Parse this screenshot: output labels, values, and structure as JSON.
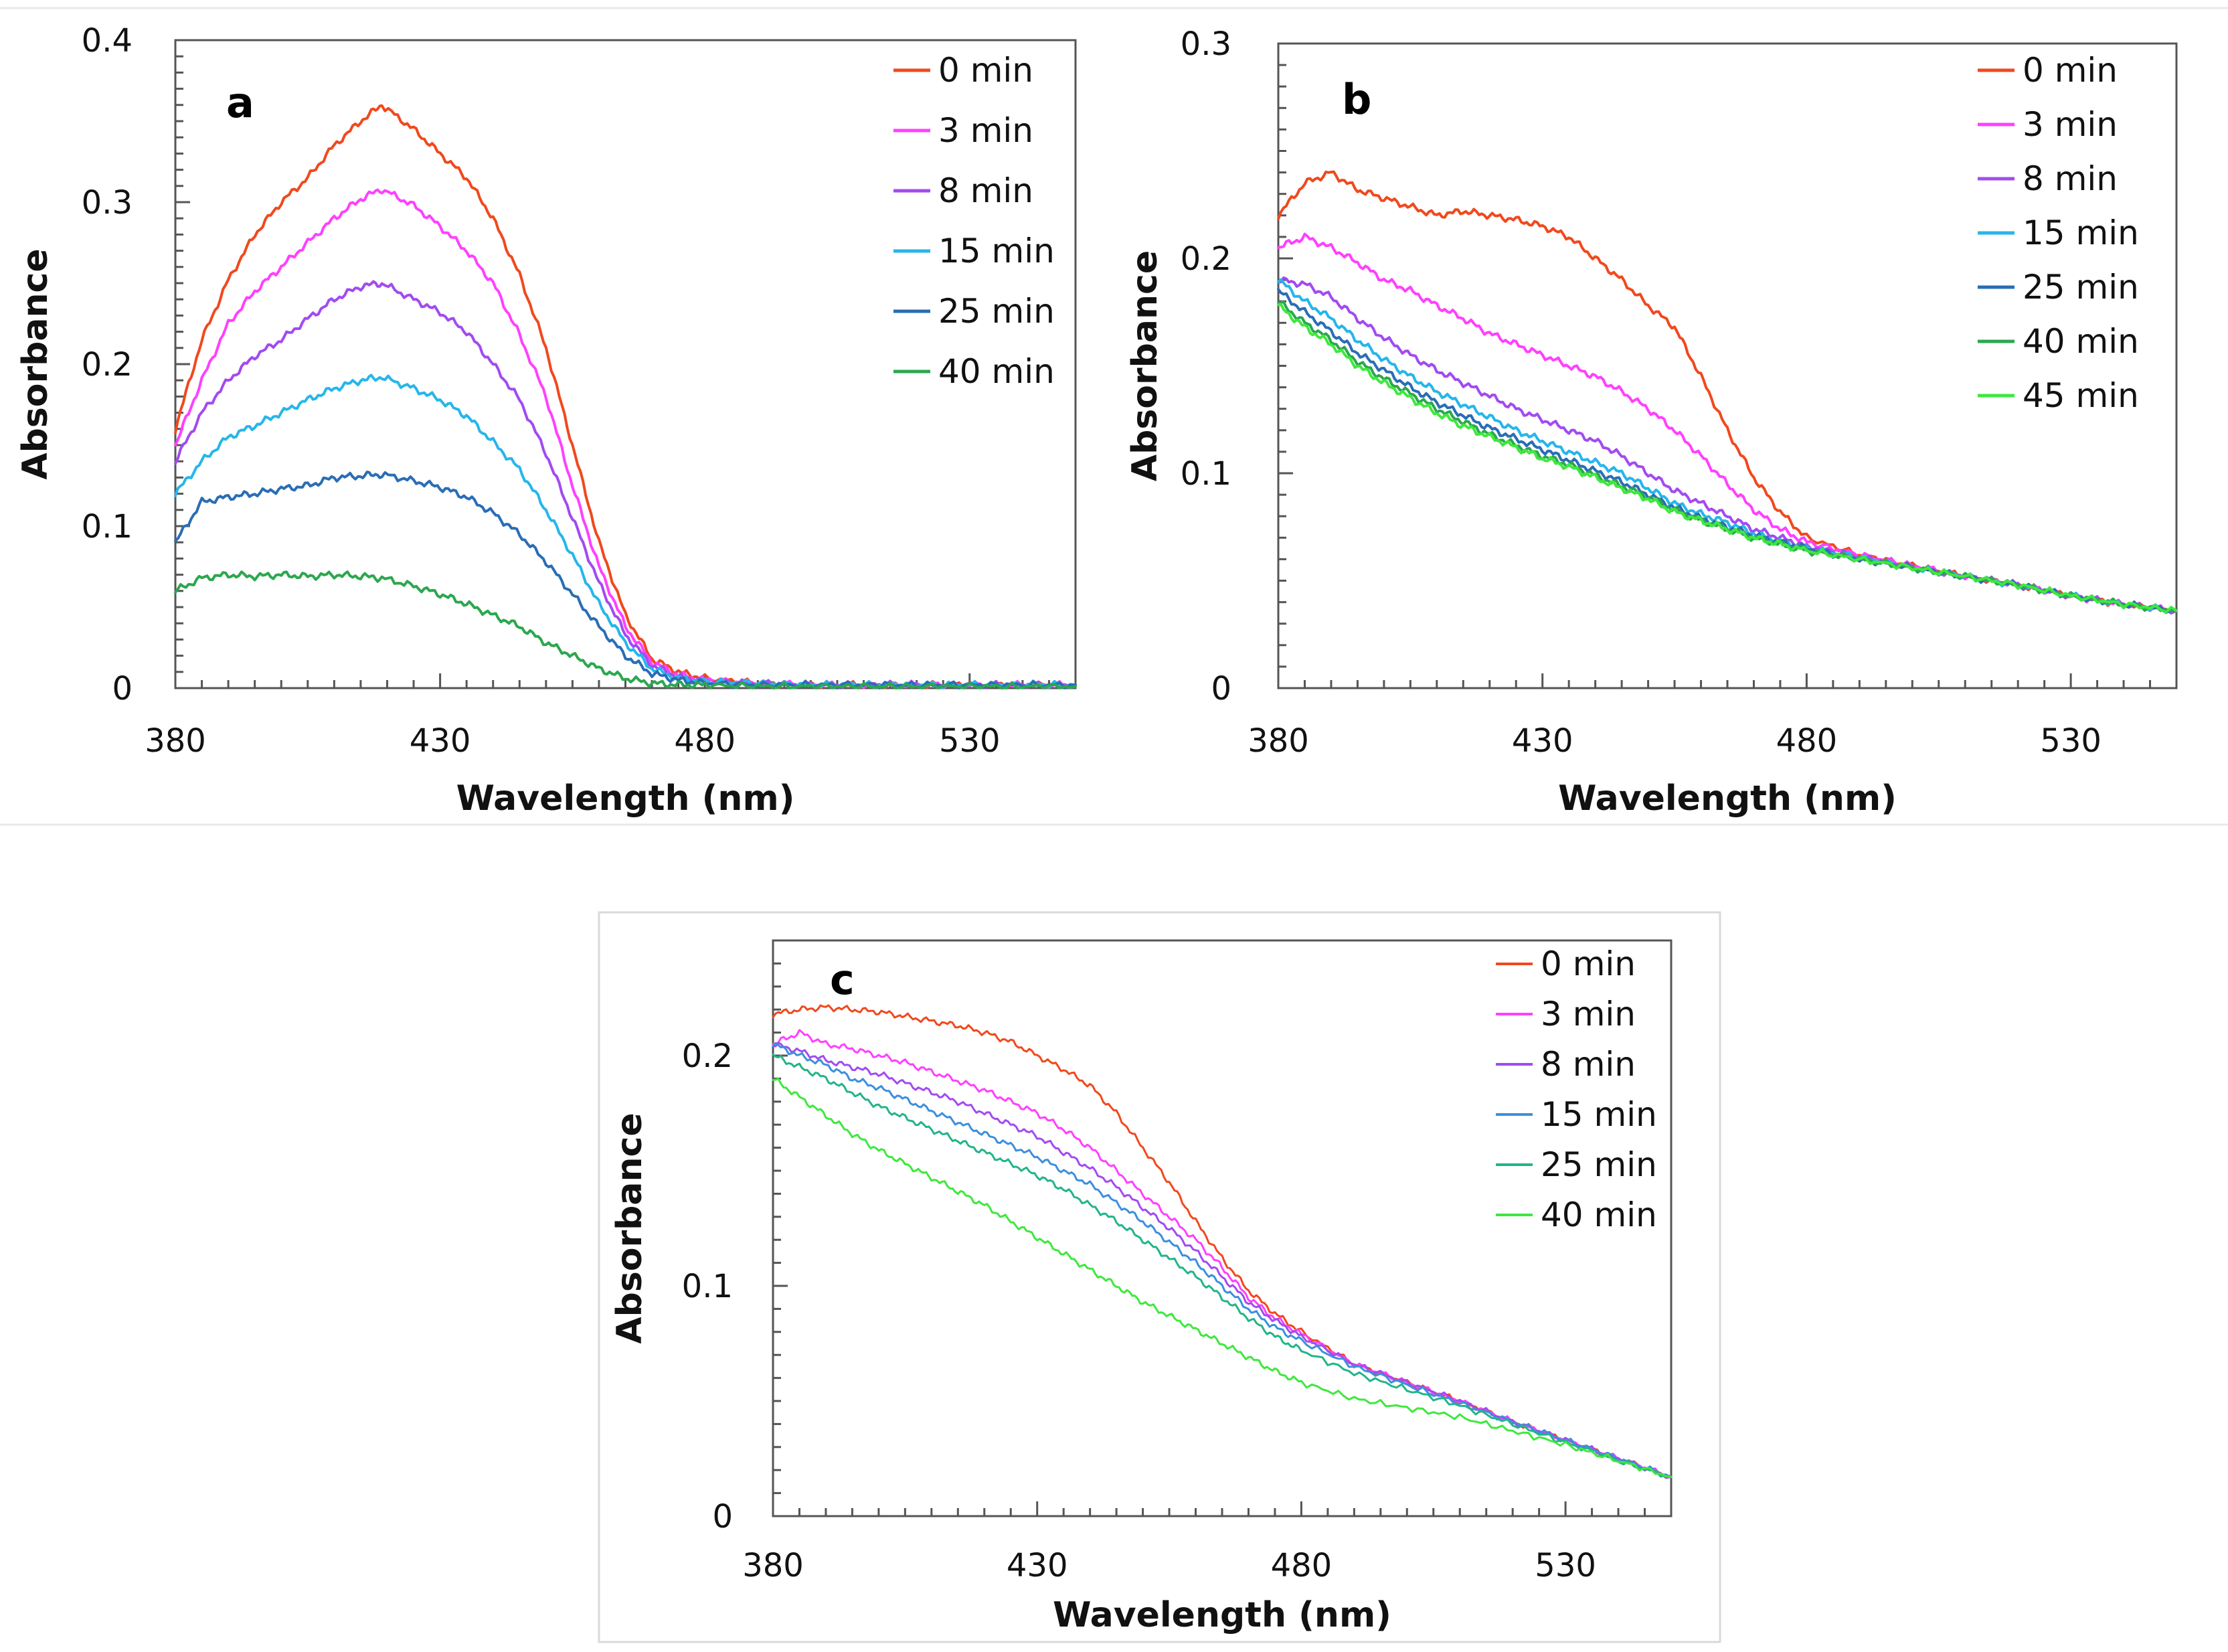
{
  "chart_data": [
    {
      "type": "line",
      "panel_label": "a",
      "xlabel": "Wavelength (nm)",
      "ylabel": "Absorbance",
      "xlim": [
        380,
        550
      ],
      "ylim": [
        0,
        0.4
      ],
      "xticks": [
        380,
        430,
        480,
        530
      ],
      "xtick_labels": [
        "380",
        "430",
        "480",
        "530"
      ],
      "yticks": [
        0,
        0.1,
        0.2,
        0.3,
        0.4
      ],
      "ytick_labels": [
        "0",
        "0.1",
        "0.2",
        "0.3",
        "0.4"
      ],
      "legend_position": "top-right",
      "x": [
        380,
        385,
        390,
        395,
        400,
        405,
        410,
        415,
        419,
        425,
        430,
        435,
        440,
        445,
        450,
        455,
        460,
        465,
        470,
        475,
        480,
        490,
        500,
        510,
        520,
        530,
        540,
        550
      ],
      "series": [
        {
          "name": "0 min",
          "color": "#f0491e",
          "values": [
            0.16,
            0.215,
            0.252,
            0.28,
            0.3,
            0.315,
            0.335,
            0.35,
            0.36,
            0.345,
            0.33,
            0.315,
            0.29,
            0.255,
            0.21,
            0.15,
            0.09,
            0.045,
            0.018,
            0.01,
            0.006,
            0.003,
            0.002,
            0.002,
            0.002,
            0.002,
            0.002,
            0.002
          ]
        },
        {
          "name": "3 min",
          "color": "#ff40ff",
          "values": [
            0.15,
            0.19,
            0.225,
            0.245,
            0.26,
            0.275,
            0.29,
            0.302,
            0.308,
            0.298,
            0.285,
            0.27,
            0.25,
            0.218,
            0.18,
            0.125,
            0.075,
            0.038,
            0.016,
            0.008,
            0.005,
            0.003,
            0.002,
            0.002,
            0.002,
            0.002,
            0.002,
            0.002
          ]
        },
        {
          "name": "8 min",
          "color": "#a24bf0",
          "values": [
            0.14,
            0.17,
            0.19,
            0.205,
            0.215,
            0.228,
            0.24,
            0.248,
            0.25,
            0.24,
            0.232,
            0.22,
            0.2,
            0.178,
            0.145,
            0.105,
            0.065,
            0.033,
            0.014,
            0.007,
            0.004,
            0.003,
            0.002,
            0.002,
            0.002,
            0.002,
            0.002,
            0.002
          ]
        },
        {
          "name": "15 min",
          "color": "#26b6ea",
          "values": [
            0.12,
            0.14,
            0.155,
            0.162,
            0.17,
            0.178,
            0.185,
            0.19,
            0.192,
            0.185,
            0.178,
            0.168,
            0.152,
            0.135,
            0.11,
            0.082,
            0.052,
            0.028,
            0.012,
            0.006,
            0.004,
            0.003,
            0.002,
            0.002,
            0.002,
            0.002,
            0.002,
            0.002
          ]
        },
        {
          "name": "25 min",
          "color": "#2a6db5",
          "values": [
            0.09,
            0.115,
            0.118,
            0.12,
            0.123,
            0.125,
            0.13,
            0.131,
            0.132,
            0.128,
            0.124,
            0.118,
            0.108,
            0.095,
            0.078,
            0.058,
            0.038,
            0.02,
            0.009,
            0.005,
            0.003,
            0.002,
            0.002,
            0.002,
            0.002,
            0.002,
            0.002,
            0.002
          ]
        },
        {
          "name": "40 min",
          "color": "#2ca74f",
          "values": [
            0.06,
            0.068,
            0.07,
            0.069,
            0.07,
            0.069,
            0.07,
            0.069,
            0.068,
            0.063,
            0.058,
            0.052,
            0.045,
            0.038,
            0.028,
            0.02,
            0.012,
            0.006,
            0.003,
            0.002,
            0.002,
            0.001,
            0.001,
            0.001,
            0.001,
            0.001,
            0.001,
            0.001
          ]
        }
      ]
    },
    {
      "type": "line",
      "panel_label": "b",
      "xlabel": "Wavelength (nm)",
      "ylabel": "Absorbance",
      "xlim": [
        380,
        550
      ],
      "ylim": [
        0,
        0.3
      ],
      "xticks": [
        380,
        430,
        480,
        530
      ],
      "xtick_labels": [
        "380",
        "430",
        "480",
        "530"
      ],
      "yticks": [
        0,
        0.1,
        0.2,
        0.3
      ],
      "ytick_labels": [
        "0",
        "0.1",
        "0.2",
        "0.3"
      ],
      "legend_position": "top-right",
      "x": [
        380,
        385,
        390,
        395,
        400,
        405,
        410,
        415,
        420,
        425,
        430,
        435,
        440,
        445,
        450,
        455,
        460,
        465,
        470,
        475,
        480,
        490,
        500,
        510,
        520,
        530,
        540,
        550
      ],
      "series": [
        {
          "name": "0 min",
          "color": "#f0491e",
          "values": [
            0.22,
            0.235,
            0.24,
            0.232,
            0.228,
            0.224,
            0.22,
            0.222,
            0.22,
            0.218,
            0.215,
            0.21,
            0.2,
            0.19,
            0.178,
            0.168,
            0.145,
            0.12,
            0.098,
            0.082,
            0.07,
            0.062,
            0.057,
            0.052,
            0.048,
            0.043,
            0.039,
            0.036
          ]
        },
        {
          "name": "3 min",
          "color": "#ff40ff",
          "values": [
            0.205,
            0.21,
            0.205,
            0.198,
            0.19,
            0.185,
            0.178,
            0.172,
            0.165,
            0.16,
            0.155,
            0.15,
            0.145,
            0.138,
            0.13,
            0.12,
            0.108,
            0.095,
            0.083,
            0.074,
            0.068,
            0.062,
            0.057,
            0.052,
            0.048,
            0.043,
            0.039,
            0.036
          ]
        },
        {
          "name": "8 min",
          "color": "#a24bf0",
          "values": [
            0.19,
            0.188,
            0.182,
            0.172,
            0.163,
            0.155,
            0.148,
            0.142,
            0.136,
            0.13,
            0.125,
            0.12,
            0.115,
            0.108,
            0.1,
            0.092,
            0.086,
            0.08,
            0.074,
            0.07,
            0.066,
            0.061,
            0.056,
            0.052,
            0.048,
            0.043,
            0.039,
            0.036
          ]
        },
        {
          "name": "15 min",
          "color": "#26b6ea",
          "values": [
            0.19,
            0.18,
            0.172,
            0.162,
            0.153,
            0.145,
            0.138,
            0.132,
            0.126,
            0.12,
            0.115,
            0.11,
            0.105,
            0.1,
            0.093,
            0.086,
            0.081,
            0.077,
            0.072,
            0.068,
            0.065,
            0.061,
            0.056,
            0.052,
            0.048,
            0.043,
            0.039,
            0.036
          ]
        },
        {
          "name": "25 min",
          "color": "#2a6db5",
          "values": [
            0.185,
            0.175,
            0.166,
            0.156,
            0.148,
            0.14,
            0.133,
            0.127,
            0.121,
            0.116,
            0.111,
            0.106,
            0.101,
            0.096,
            0.09,
            0.084,
            0.079,
            0.075,
            0.071,
            0.068,
            0.065,
            0.06,
            0.056,
            0.052,
            0.048,
            0.043,
            0.039,
            0.036
          ]
        },
        {
          "name": "40 min",
          "color": "#2ca74f",
          "values": [
            0.18,
            0.17,
            0.162,
            0.152,
            0.144,
            0.137,
            0.13,
            0.124,
            0.118,
            0.113,
            0.108,
            0.104,
            0.099,
            0.094,
            0.089,
            0.083,
            0.078,
            0.074,
            0.07,
            0.067,
            0.064,
            0.06,
            0.056,
            0.052,
            0.048,
            0.043,
            0.039,
            0.036
          ]
        },
        {
          "name": "45 min",
          "color": "#3ee83e",
          "values": [
            0.178,
            0.168,
            0.16,
            0.15,
            0.142,
            0.135,
            0.128,
            0.122,
            0.117,
            0.112,
            0.107,
            0.103,
            0.098,
            0.093,
            0.088,
            0.082,
            0.078,
            0.074,
            0.07,
            0.067,
            0.064,
            0.06,
            0.056,
            0.052,
            0.048,
            0.043,
            0.039,
            0.036
          ]
        }
      ]
    },
    {
      "type": "line",
      "panel_label": "c",
      "xlabel": "Wavelength (nm)",
      "ylabel": "Absorbance",
      "xlim": [
        380,
        550
      ],
      "ylim": [
        0,
        0.25
      ],
      "xticks": [
        380,
        430,
        480,
        530
      ],
      "xtick_labels": [
        "380",
        "430",
        "480",
        "530"
      ],
      "yticks": [
        0,
        0.1,
        0.2
      ],
      "ytick_labels": [
        "0",
        "0.1",
        "0.2"
      ],
      "legend_position": "top-right",
      "x": [
        380,
        385,
        390,
        395,
        400,
        405,
        410,
        415,
        420,
        425,
        430,
        435,
        440,
        445,
        450,
        455,
        460,
        465,
        470,
        475,
        480,
        490,
        500,
        510,
        520,
        530,
        540,
        550
      ],
      "series": [
        {
          "name": "0 min",
          "color": "#f0491e",
          "values": [
            0.218,
            0.22,
            0.221,
            0.22,
            0.219,
            0.217,
            0.215,
            0.213,
            0.21,
            0.206,
            0.2,
            0.194,
            0.187,
            0.175,
            0.16,
            0.145,
            0.128,
            0.112,
            0.098,
            0.088,
            0.08,
            0.066,
            0.058,
            0.05,
            0.041,
            0.033,
            0.025,
            0.017
          ]
        },
        {
          "name": "3 min",
          "color": "#ff40ff",
          "values": [
            0.205,
            0.21,
            0.205,
            0.203,
            0.2,
            0.197,
            0.193,
            0.189,
            0.185,
            0.18,
            0.175,
            0.168,
            0.16,
            0.15,
            0.14,
            0.13,
            0.12,
            0.108,
            0.095,
            0.086,
            0.079,
            0.066,
            0.058,
            0.05,
            0.041,
            0.033,
            0.025,
            0.017
          ]
        },
        {
          "name": "8 min",
          "color": "#a24bf0",
          "values": [
            0.205,
            0.202,
            0.198,
            0.195,
            0.192,
            0.188,
            0.184,
            0.18,
            0.175,
            0.17,
            0.165,
            0.158,
            0.151,
            0.143,
            0.134,
            0.125,
            0.115,
            0.104,
            0.093,
            0.085,
            0.078,
            0.066,
            0.058,
            0.05,
            0.041,
            0.033,
            0.025,
            0.017
          ]
        },
        {
          "name": "15 min",
          "color": "#3d8fdc",
          "values": [
            0.205,
            0.2,
            0.196,
            0.19,
            0.186,
            0.181,
            0.176,
            0.171,
            0.166,
            0.161,
            0.156,
            0.15,
            0.144,
            0.136,
            0.128,
            0.119,
            0.11,
            0.1,
            0.09,
            0.082,
            0.076,
            0.065,
            0.057,
            0.049,
            0.041,
            0.033,
            0.025,
            0.017
          ]
        },
        {
          "name": "25 min",
          "color": "#22b48a",
          "values": [
            0.2,
            0.195,
            0.19,
            0.184,
            0.178,
            0.173,
            0.168,
            0.163,
            0.158,
            0.153,
            0.148,
            0.142,
            0.135,
            0.128,
            0.12,
            0.112,
            0.104,
            0.095,
            0.086,
            0.078,
            0.072,
            0.062,
            0.055,
            0.048,
            0.04,
            0.032,
            0.024,
            0.017
          ]
        },
        {
          "name": "40 min",
          "color": "#3ee83e",
          "values": [
            0.19,
            0.182,
            0.174,
            0.166,
            0.159,
            0.153,
            0.147,
            0.141,
            0.135,
            0.128,
            0.121,
            0.114,
            0.107,
            0.1,
            0.093,
            0.087,
            0.081,
            0.075,
            0.069,
            0.063,
            0.058,
            0.051,
            0.047,
            0.043,
            0.037,
            0.031,
            0.024,
            0.017
          ]
        }
      ]
    }
  ]
}
